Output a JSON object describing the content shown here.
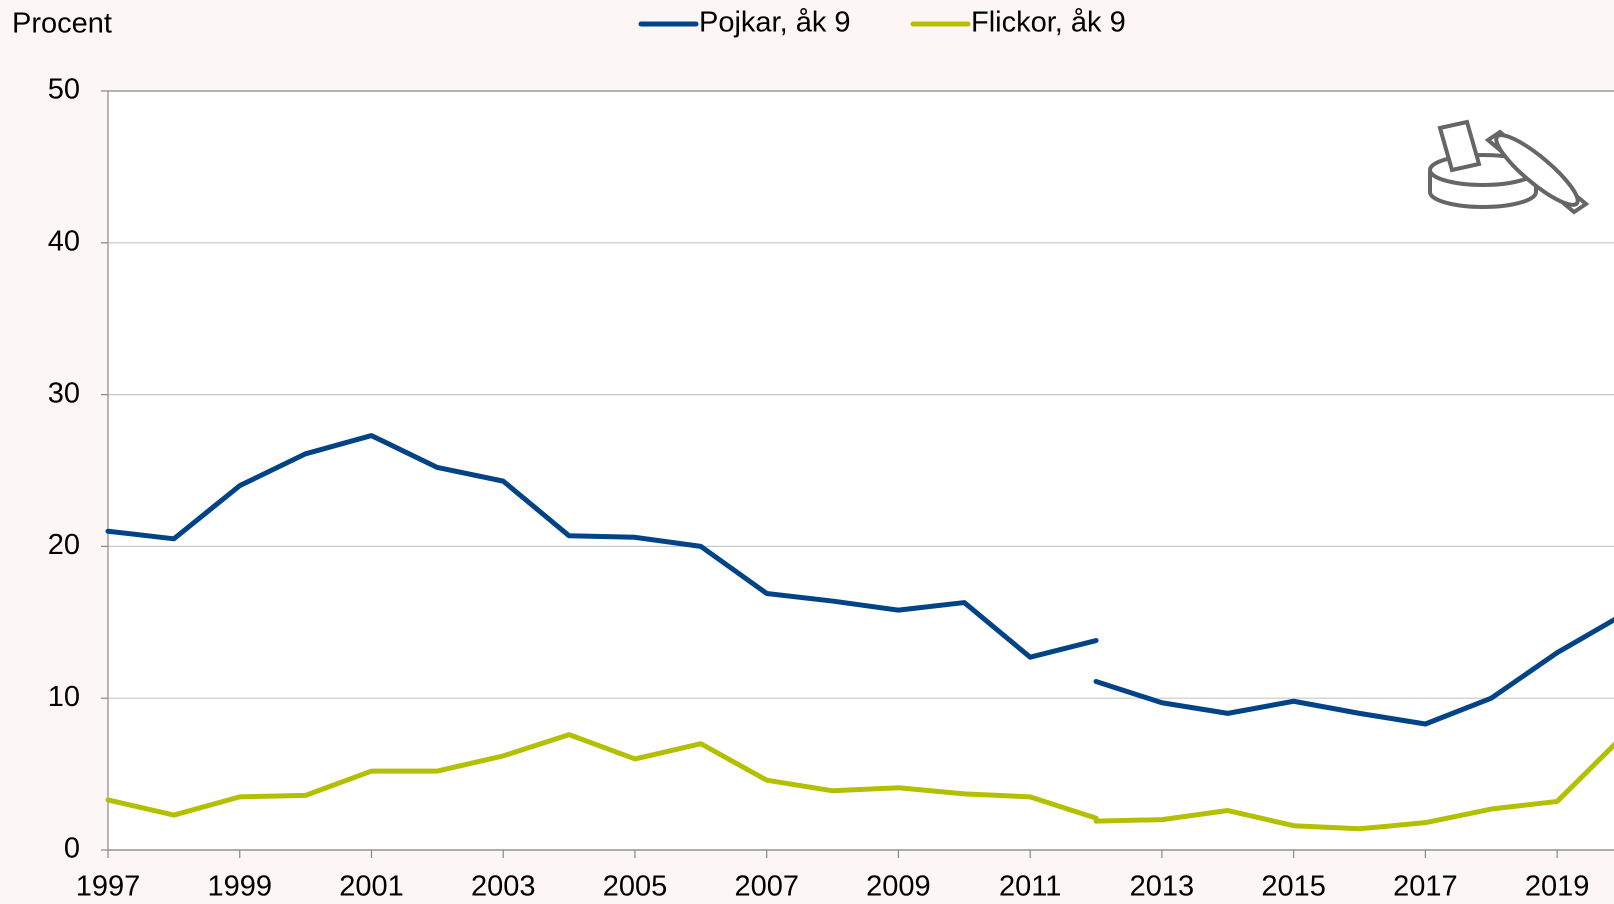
{
  "chart_data": {
    "type": "line",
    "y_label": "Procent",
    "x": [
      1997,
      1998,
      1999,
      2000,
      2001,
      2002,
      2003,
      2004,
      2005,
      2006,
      2007,
      2008,
      2009,
      2010,
      2011,
      2012,
      2012,
      2012,
      2013,
      2014,
      2015,
      2016,
      2017,
      2018,
      2019,
      2020
    ],
    "series": [
      {
        "name": "Pojkar, åk 9",
        "color": "#004386",
        "values": [
          21.0,
          20.5,
          24.0,
          26.1,
          27.3,
          25.2,
          24.3,
          20.7,
          20.6,
          20.0,
          16.9,
          16.4,
          15.8,
          16.3,
          12.7,
          13.8,
          null,
          11.1,
          9.7,
          9.0,
          9.8,
          9.0,
          8.3,
          10.0,
          13.0,
          15.5
        ]
      },
      {
        "name": "Flickor, åk 9",
        "color": "#b3c000",
        "values": [
          3.3,
          2.3,
          3.5,
          3.6,
          5.2,
          5.2,
          6.2,
          7.6,
          6.0,
          7.0,
          4.6,
          3.9,
          4.1,
          3.7,
          3.5,
          2.1,
          null,
          1.9,
          2.0,
          2.6,
          1.6,
          1.4,
          1.8,
          2.7,
          3.2,
          7.5
        ]
      }
    ],
    "xlim": [
      1997,
      2020
    ],
    "xticks": [
      1997,
      1999,
      2001,
      2003,
      2005,
      2007,
      2009,
      2011,
      2013,
      2015,
      2017,
      2019
    ],
    "ylim": [
      0,
      50
    ],
    "yticks": [
      0,
      10,
      20,
      30,
      40,
      50
    ],
    "grid": true
  }
}
